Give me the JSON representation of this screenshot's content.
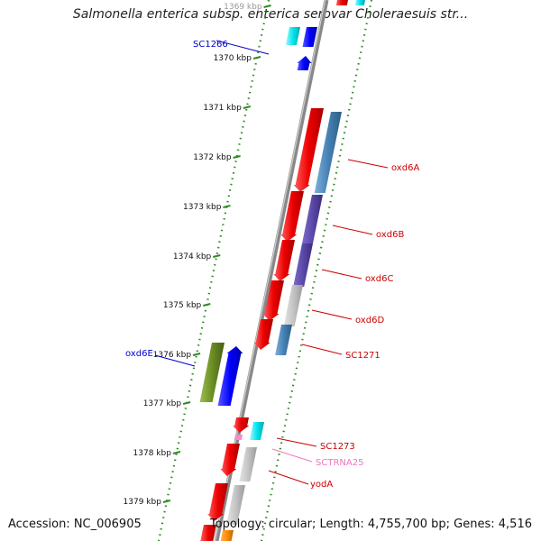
{
  "title": "Salmonella enterica subsp. enterica serovar Choleraesuis str...",
  "footer": {
    "accession": "Accession: NC_006905",
    "summary": "Topology: circular; Length: 4,755,700 bp; Genes: 4,516"
  },
  "colors": {
    "backbone": "#888888",
    "tick": "#2e8b22",
    "forward_gene": "#ff0000",
    "protein_blue": "#4682b4",
    "protein_purple": "#5b48a8",
    "hypothetical": "#c8c8c8",
    "cyan_gene": "#00e5ee",
    "blue_gene": "#0000ff",
    "olive_gene": "#6b8e23",
    "trna": "#ff88c8",
    "orange_gene": "#ff8c00",
    "label_red": "#cc0000",
    "label_blue": "#0000cc",
    "label_pink": "#ee77bb"
  },
  "scale_ticks": [
    "1369 kbp",
    "1370 kbp",
    "1371 kbp",
    "1372 kbp",
    "1373 kbp",
    "1374 kbp",
    "1375 kbp",
    "1376 kbp",
    "1377 kbp",
    "1378 kbp",
    "1379 kbp"
  ],
  "gene_labels": [
    {
      "name": "SC1266",
      "color": "#0000cc"
    },
    {
      "name": "oxd6A",
      "color": "#cc0000"
    },
    {
      "name": "oxd6B",
      "color": "#cc0000"
    },
    {
      "name": "oxd6C",
      "color": "#cc0000"
    },
    {
      "name": "oxd6D",
      "color": "#cc0000"
    },
    {
      "name": "SC1271",
      "color": "#cc0000"
    },
    {
      "name": "oxd6E",
      "color": "#0000cc"
    },
    {
      "name": "SC1273",
      "color": "#cc0000"
    },
    {
      "name": "SCTRNA25",
      "color": "#ee77bb"
    },
    {
      "name": "yodA",
      "color": "#cc0000"
    }
  ]
}
